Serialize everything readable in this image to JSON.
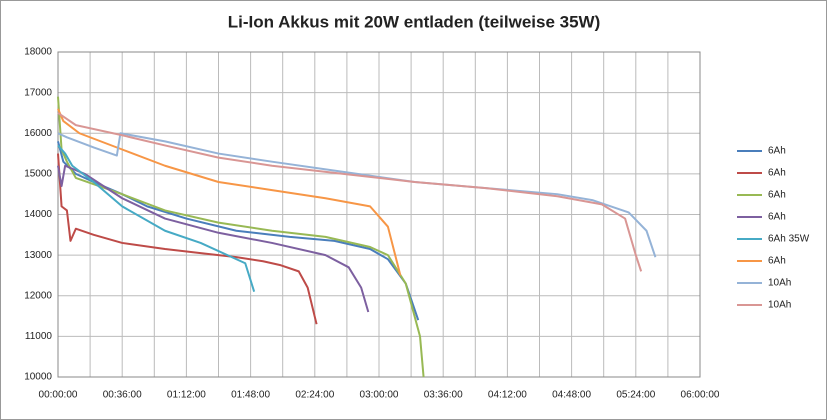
{
  "chart_data": {
    "type": "line",
    "title": "Li-Ion Akkus mit 20W entladen (teilweise 35W)",
    "xlim": [
      0,
      360
    ],
    "xticks": [
      {
        "value": 0,
        "label": "00:00:00"
      },
      {
        "value": 36,
        "label": "00:36:00"
      },
      {
        "value": 72,
        "label": "01:12:00"
      },
      {
        "value": 108,
        "label": "01:48:00"
      },
      {
        "value": 144,
        "label": "02:24:00"
      },
      {
        "value": 180,
        "label": "03:00:00"
      },
      {
        "value": 216,
        "label": "03:36:00"
      },
      {
        "value": 252,
        "label": "04:12:00"
      },
      {
        "value": 288,
        "label": "04:48:00"
      },
      {
        "value": 324,
        "label": "05:24:00"
      },
      {
        "value": 360,
        "label": "06:00:00"
      }
    ],
    "ylim": [
      10000,
      18000
    ],
    "yticks": [
      10000,
      11000,
      12000,
      13000,
      14000,
      15000,
      16000,
      17000,
      18000
    ],
    "grid": true,
    "legend": "right",
    "series": [
      {
        "name": "6Ah",
        "color": "#4a7ebb",
        "x": [
          0,
          3,
          10,
          20,
          36,
          50,
          72,
          100,
          130,
          155,
          175,
          185,
          195,
          202
        ],
        "values": [
          15800,
          15300,
          15000,
          14800,
          14500,
          14200,
          13900,
          13600,
          13450,
          13350,
          13150,
          12900,
          12300,
          11400
        ]
      },
      {
        "name": "6Ah",
        "color": "#be4b48",
        "x": [
          0,
          2,
          5,
          7,
          10,
          20,
          36,
          60,
          80,
          100,
          115,
          125,
          135,
          140,
          145
        ],
        "values": [
          15500,
          14200,
          14100,
          13350,
          13650,
          13500,
          13300,
          13150,
          13050,
          12950,
          12850,
          12750,
          12600,
          12200,
          11300
        ]
      },
      {
        "name": "6Ah",
        "color": "#98b954",
        "x": [
          0,
          2,
          5,
          10,
          36,
          60,
          90,
          120,
          150,
          175,
          185,
          195,
          203,
          205
        ],
        "values": [
          16900,
          15600,
          15300,
          14900,
          14500,
          14100,
          13800,
          13600,
          13450,
          13200,
          13000,
          12300,
          11000,
          10000
        ]
      },
      {
        "name": "6Ah",
        "color": "#7d60a0",
        "x": [
          0,
          2,
          4,
          15,
          36,
          60,
          90,
          120,
          150,
          163,
          170,
          174
        ],
        "values": [
          15200,
          14700,
          15200,
          15000,
          14400,
          13900,
          13550,
          13300,
          13000,
          12700,
          12200,
          11600
        ]
      },
      {
        "name": "6Ah 35W",
        "color": "#46aac5",
        "x": [
          0,
          4,
          8,
          20,
          36,
          60,
          80,
          95,
          105,
          110
        ],
        "values": [
          15700,
          15500,
          15200,
          14800,
          14200,
          13600,
          13300,
          13000,
          12800,
          12100
        ]
      },
      {
        "name": "6Ah",
        "color": "#f79646",
        "x": [
          0,
          3,
          12,
          36,
          60,
          90,
          120,
          150,
          175,
          185,
          192
        ],
        "values": [
          16600,
          16300,
          16000,
          15600,
          15200,
          14800,
          14600,
          14400,
          14200,
          13700,
          12500
        ]
      },
      {
        "name": "10Ah",
        "color": "#95b3d7",
        "x": [
          0,
          5,
          20,
          33,
          35,
          60,
          90,
          120,
          160,
          200,
          240,
          280,
          300,
          320,
          330,
          335
        ],
        "values": [
          16000,
          15900,
          15650,
          15450,
          16000,
          15800,
          15500,
          15300,
          15050,
          14800,
          14650,
          14500,
          14350,
          14050,
          13600,
          12950
        ]
      },
      {
        "name": "10Ah",
        "color": "#d99694",
        "x": [
          0,
          10,
          36,
          60,
          90,
          120,
          160,
          200,
          240,
          280,
          305,
          318,
          324,
          327
        ],
        "values": [
          16500,
          16200,
          15950,
          15700,
          15400,
          15200,
          15000,
          14800,
          14650,
          14450,
          14250,
          13900,
          13000,
          12600
        ]
      }
    ]
  }
}
